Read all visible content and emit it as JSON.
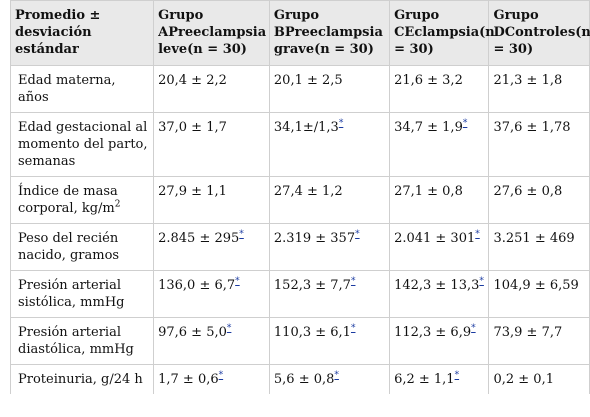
{
  "headers": [
    "Promedio ± desviación estándar",
    "Grupo APreeclampsia leve(n = 30)",
    "Grupo BPreeclampsia grave(n = 30)",
    "Grupo CEclampsia(n = 30)",
    "Grupo DControles(n = 30)"
  ],
  "footnote_mark": "*",
  "rows": [
    {
      "label": "Edad materna, años",
      "a": "20,4 ± 2,2",
      "b": "20,1 ± 2,5",
      "c": "21,6 ± 3,2",
      "d": "21,3 ± 1,8"
    },
    {
      "label": "Edad gestacional al momento del parto, semanas",
      "a": "37,0 ± 1,7",
      "b": "34,1±/1,3",
      "c": "34,7 ± 1,9",
      "d": "37,6 ± 1,78"
    },
    {
      "label": "Índice de masa corporal, kg/m",
      "label_sup": "2",
      "a": "27,9 ± 1,1",
      "b": "27,4 ± 1,2",
      "c": "27,1 ± 0,8",
      "d": "27,6 ± 0,8"
    },
    {
      "label": "Peso del recién nacido, gramos",
      "a": "2.845 ± 295",
      "b": "2.319 ± 357",
      "c": "2.041 ± 301",
      "d": "3.251 ± 469"
    },
    {
      "label": "Presión arterial sistólica, mmHg",
      "a": "136,0 ± 6,7",
      "b": "152,3 ± 7,7",
      "c": "142,3 ± 13,3",
      "d": "104,9 ± 6,59"
    },
    {
      "label": "Presión arterial diastólica, mmHg",
      "a": "97,6 ± 5,0",
      "b": "110,3 ± 6,1",
      "c": "112,3 ± 6,9",
      "d": "73,9 ± 7,7"
    },
    {
      "label": "Proteinuria, g/24 h",
      "a": "1,7 ± 0,6",
      "b": "5,6 ± 0,8",
      "c": "6,2 ± 1,1",
      "d": "0,2 ± 0,1"
    }
  ]
}
